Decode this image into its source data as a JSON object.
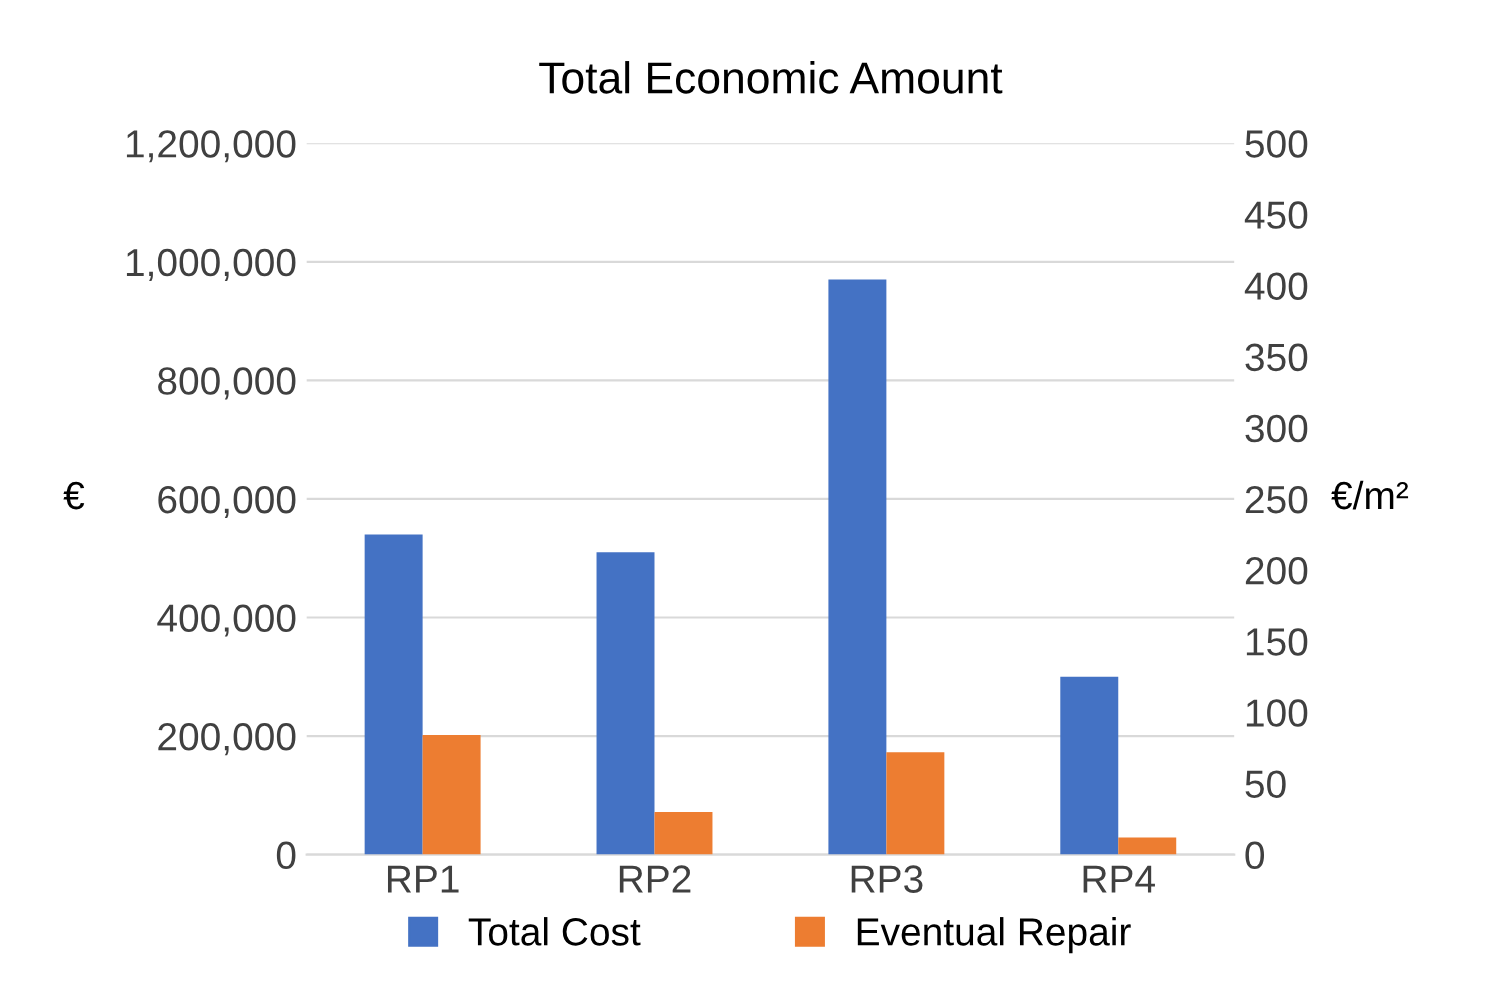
{
  "chart_data": {
    "type": "bar",
    "title": "Total Economic Amount",
    "ylabel": "€",
    "y2label": "€/m²",
    "categories": [
      "RP1",
      "RP2",
      "RP3",
      "RP4"
    ],
    "series": [
      {
        "name": "Total Cost",
        "color": "#4472c4",
        "values": [
          540000,
          510000,
          970000,
          300000
        ]
      },
      {
        "name": "Eventual Repair",
        "color": "#ed7d31",
        "values": [
          84,
          30,
          72,
          12
        ],
        "axis": "y2"
      }
    ],
    "ylim": [
      0,
      1200000
    ],
    "yticks": [
      {
        "value": 0,
        "label": "0"
      },
      {
        "value": 200000,
        "label": "200,000"
      },
      {
        "value": 400000,
        "label": "400,000"
      },
      {
        "value": 600000,
        "label": "600,000"
      },
      {
        "value": 800000,
        "label": "800,000"
      },
      {
        "value": 1000000,
        "label": "1,000,000"
      },
      {
        "value": 1200000,
        "label": "1,200,000"
      }
    ],
    "y2lim": [
      0,
      500
    ],
    "y2ticks": [
      0,
      50,
      100,
      150,
      200,
      250,
      300,
      350,
      400,
      450,
      500
    ],
    "grid": "y",
    "legend": "bottom"
  }
}
